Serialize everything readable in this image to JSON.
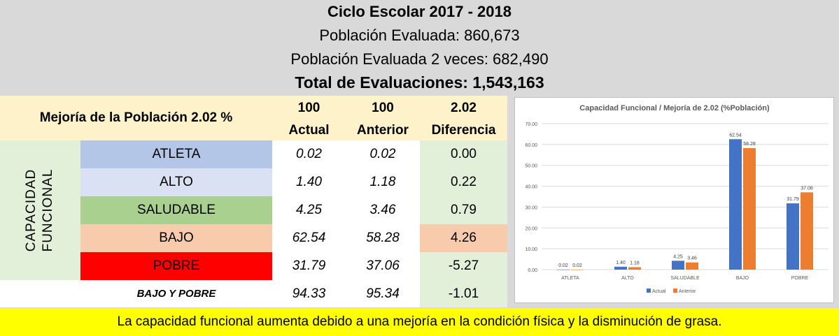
{
  "header": {
    "title": "Ciclo Escolar 2017 - 2018",
    "line2": "Población Evaluada: 860,673",
    "line3": "Población Evaluada 2 veces: 682,490",
    "line4": "Total de Evaluaciones: 1,543,163"
  },
  "table": {
    "header_label": "Mejoría de la Población 2.02 %",
    "col_actual_top": "100",
    "col_actual": "Actual",
    "col_anterior_top": "100",
    "col_anterior": "Anterior",
    "col_diff_top": "2.02",
    "col_diff": "Diferencia",
    "group_label_1": "CAPACIDAD",
    "group_label_2": "FUNCIONAL",
    "rows": [
      {
        "label": "ATLETA",
        "actual": "0.02",
        "anterior": "0.02",
        "diff": "0.00",
        "color": "#b4c6e7"
      },
      {
        "label": "ALTO",
        "actual": "1.40",
        "anterior": "1.18",
        "diff": "0.22",
        "color": "#d9e1f2"
      },
      {
        "label": "SALUDABLE",
        "actual": "4.25",
        "anterior": "3.46",
        "diff": "0.79",
        "color": "#a9d08e"
      },
      {
        "label": "BAJO",
        "actual": "62.54",
        "anterior": "58.28",
        "diff": "4.26",
        "color": "#f8cbad"
      },
      {
        "label": "POBRE",
        "actual": "31.79",
        "anterior": "37.06",
        "diff": "-5.27",
        "color": "#ff0000"
      }
    ],
    "total": {
      "label": "BAJO Y POBRE",
      "actual": "94.33",
      "anterior": "95.34",
      "diff": "-1.01"
    }
  },
  "chart_data": {
    "type": "bar",
    "title": "Capacidad Funcional / Mejoría de 2.02 (%Población)",
    "categories": [
      "ATLETA",
      "ALTO",
      "SALUDABLE",
      "BAJO",
      "POBRE"
    ],
    "series": [
      {
        "name": "Actual",
        "values": [
          0.02,
          1.4,
          4.25,
          62.54,
          31.79
        ],
        "color": "#4472c4"
      },
      {
        "name": "Anterior",
        "values": [
          0.02,
          1.18,
          3.46,
          58.28,
          37.06
        ],
        "color": "#ed7d31"
      }
    ],
    "ylim": [
      0,
      70
    ],
    "yticks": [
      "0.00",
      "10.00",
      "20.00",
      "30.00",
      "40.00",
      "50.00",
      "60.00",
      "70.00"
    ],
    "grid": true,
    "legend": "bottom"
  },
  "footer": {
    "text": "La capacidad funcional aumenta debido a una mejoría en la condición física y la disminución de grasa."
  },
  "colors": {
    "header_bg": "#d9d9d9",
    "table_header_bg": "#fef2cb",
    "group_bg": "#e2efd9",
    "footer_bg": "#ffff00"
  }
}
